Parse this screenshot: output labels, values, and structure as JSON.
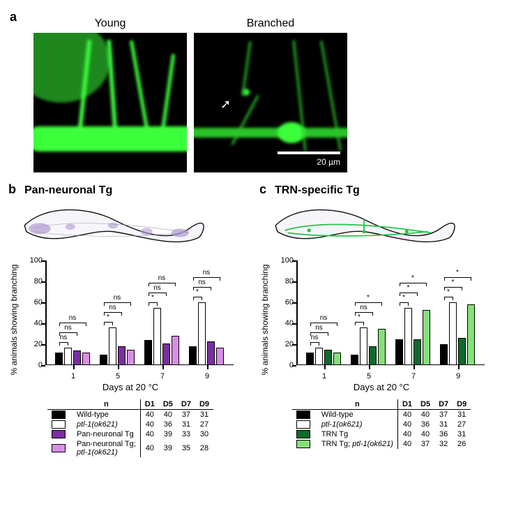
{
  "panelA": {
    "label": "a",
    "images": [
      {
        "title": "Young"
      },
      {
        "title": "Branched"
      }
    ],
    "scale_text": "20 µm",
    "colors": {
      "bg": "#000000",
      "fluor": "#25e02c",
      "arrow": "#ffffff"
    }
  },
  "panelB": {
    "label": "b",
    "title": "Pan-neuronal Tg",
    "worm_color": "#b29ad1",
    "y_title": "% animals showing branching",
    "x_title": "Days at 20 °C",
    "ylim": [
      0,
      100
    ],
    "ytick_step": 20,
    "x_labels": [
      "1",
      "5",
      "7",
      "9"
    ],
    "series": [
      {
        "name": "Wild-type",
        "color": "#000000"
      },
      {
        "name": "ptl-1(ok621)",
        "color": "#ffffff",
        "italic": true
      },
      {
        "name": "Pan-neuronal Tg",
        "color": "#7b2fa0"
      },
      {
        "name": "Pan-neuronal Tg;\nptl-1(ok621)",
        "color": "#d98ee6",
        "italic_tail": "ptl-1(ok621)"
      }
    ],
    "values": [
      [
        12,
        17,
        14,
        12
      ],
      [
        10,
        36,
        18,
        15
      ],
      [
        24,
        55,
        21,
        28
      ],
      [
        18,
        60,
        23,
        17
      ]
    ],
    "sig": [
      [
        [
          "ns",
          "ns",
          "ns"
        ]
      ],
      [
        [
          "*",
          "ns",
          "ns"
        ]
      ],
      [
        [
          "*",
          "ns",
          "ns"
        ]
      ],
      [
        [
          "*",
          "ns",
          "ns"
        ]
      ]
    ],
    "n_table_header": [
      "n",
      "D1",
      "D5",
      "D7",
      "D9"
    ],
    "n_table": [
      [
        40,
        40,
        37,
        31
      ],
      [
        40,
        36,
        31,
        27
      ],
      [
        40,
        39,
        33,
        30
      ],
      [
        40,
        39,
        35,
        28
      ]
    ]
  },
  "panelC": {
    "label": "c",
    "title": "TRN-specific Tg",
    "worm_color": "#29c24b",
    "y_title": "% animals showing branching",
    "x_title": "Days at 20 °C",
    "ylim": [
      0,
      100
    ],
    "ytick_step": 20,
    "x_labels": [
      "1",
      "5",
      "7",
      "9"
    ],
    "series": [
      {
        "name": "Wild-type",
        "color": "#000000"
      },
      {
        "name": "ptl-1(ok621)",
        "color": "#ffffff",
        "italic": true
      },
      {
        "name": "TRN Tg",
        "color": "#0d6b2b"
      },
      {
        "name": "TRN Tg; ptl-1(ok621)",
        "color": "#86e07a",
        "italic_tail": "ptl-1(ok621)"
      }
    ],
    "values": [
      [
        12,
        17,
        15,
        12
      ],
      [
        10,
        36,
        18,
        35
      ],
      [
        25,
        55,
        25,
        53
      ],
      [
        20,
        60,
        26,
        58
      ]
    ],
    "sig": [
      [
        [
          "ns",
          "ns",
          "ns"
        ]
      ],
      [
        [
          "*",
          "ns",
          "*"
        ]
      ],
      [
        [
          "*",
          "*",
          "*"
        ]
      ],
      [
        [
          "*",
          "*",
          "*"
        ]
      ]
    ],
    "n_table_header": [
      "n",
      "D1",
      "D5",
      "D7",
      "D9"
    ],
    "n_table": [
      [
        40,
        40,
        37,
        31
      ],
      [
        40,
        36,
        31,
        27
      ],
      [
        40,
        40,
        36,
        31
      ],
      [
        40,
        37,
        32,
        26
      ]
    ]
  },
  "layout": {
    "chart_inner_left": 30,
    "chart_inner_width": 268,
    "chart_inner_height": 150,
    "label_fontsize": 12,
    "tick_fontsize": 11
  }
}
